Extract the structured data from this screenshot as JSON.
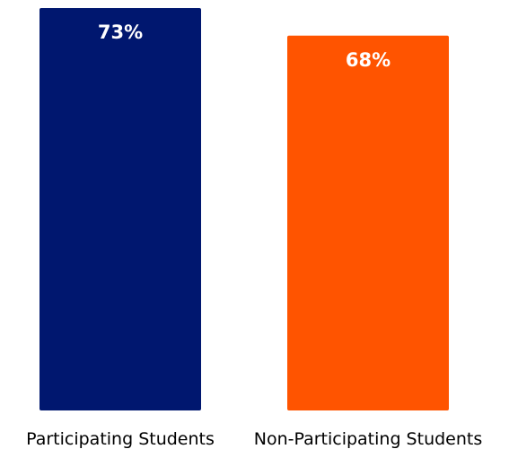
{
  "chart_data": {
    "type": "bar",
    "categories": [
      "Participating Students",
      "Non-Participating Students"
    ],
    "values": [
      73,
      68
    ],
    "value_labels": [
      "73%",
      "68%"
    ],
    "colors": [
      "#00176f",
      "#ff5400"
    ],
    "ylim": [
      0,
      73
    ],
    "grid": false,
    "title": "",
    "xlabel": "",
    "ylabel": ""
  }
}
